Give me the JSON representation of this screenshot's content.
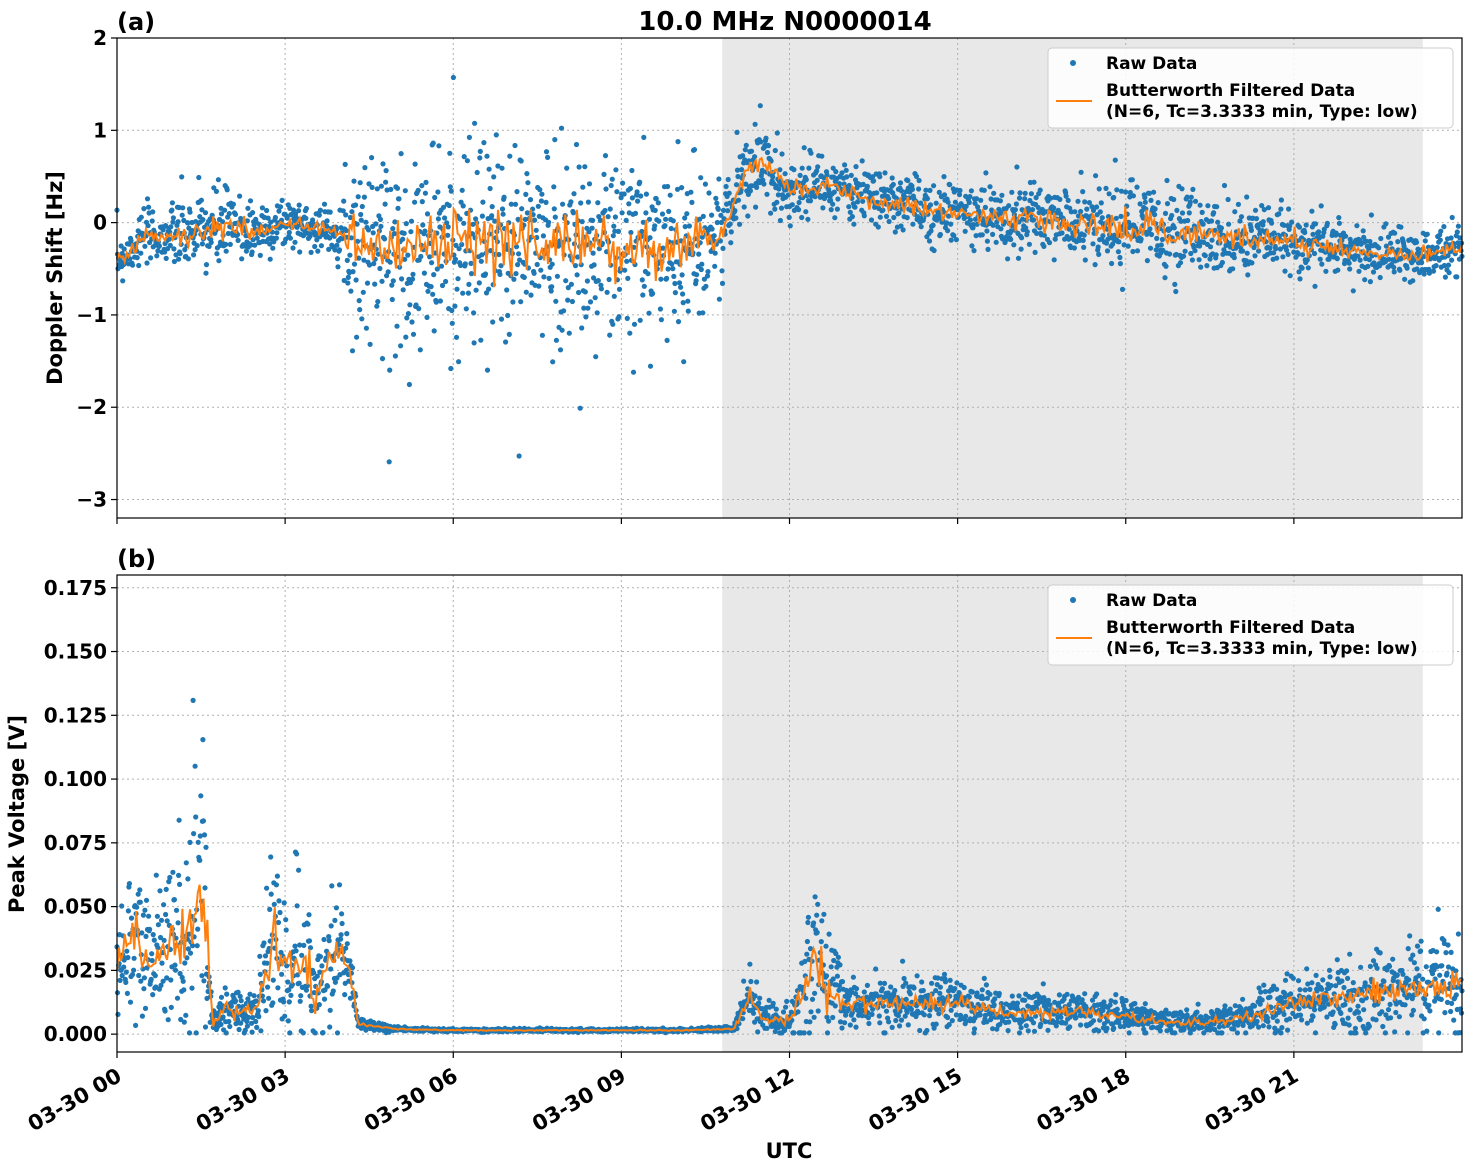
{
  "figure": {
    "title": "10.0 MHz N0000014",
    "xlabel": "UTC",
    "x_tick_labels": [
      "03-30 00",
      "03-30 03",
      "03-30 06",
      "03-30 09",
      "03-30 12",
      "03-30 15",
      "03-30 18",
      "03-30 21"
    ],
    "night_shading": {
      "start_hour": 10.8,
      "end_hour": 23.3,
      "color": "#e8e8e8"
    },
    "raw_color": "#1f77b4",
    "filtered_color": "#ff7f0e"
  },
  "chart_data": [
    {
      "type": "scatter",
      "panel_label": "(a)",
      "ylabel": "Doppler Shift [Hz]",
      "xlim": [
        0,
        24
      ],
      "ylim": [
        -3.2,
        2.0
      ],
      "y_ticks": [
        2,
        1,
        0,
        -1,
        -2,
        -3
      ],
      "y_tick_labels": [
        "2",
        "1",
        "0",
        "−1",
        "−2",
        "−3"
      ],
      "legend": {
        "position": "top-right",
        "raw": "Raw Data",
        "filtered_line1": "Butterworth Filtered Data",
        "filtered_line2": "(N=6, Tc=3.3333 min, Type: low)"
      },
      "filtered_envelope": {
        "x": [
          0,
          0.5,
          1.0,
          1.5,
          2.0,
          2.5,
          3.0,
          3.5,
          4.0,
          4.2,
          5.0,
          6.0,
          7.0,
          8.0,
          9.0,
          10.0,
          10.8,
          11.2,
          11.5,
          12.0,
          12.5,
          13.0,
          14.0,
          15.0,
          16.0,
          17.0,
          18.0,
          19.0,
          20.0,
          21.0,
          22.0,
          23.0,
          24.0
        ],
        "center": [
          -0.4,
          -0.15,
          -0.15,
          -0.1,
          -0.05,
          -0.1,
          0.0,
          -0.05,
          -0.1,
          -0.2,
          -0.3,
          -0.25,
          -0.2,
          -0.25,
          -0.3,
          -0.25,
          -0.1,
          0.55,
          0.65,
          0.35,
          0.4,
          0.35,
          0.2,
          0.1,
          0.05,
          0.0,
          -0.05,
          -0.1,
          -0.15,
          -0.2,
          -0.3,
          -0.35,
          -0.3
        ],
        "spread": [
          0.25,
          0.25,
          0.3,
          0.45,
          0.4,
          0.3,
          0.25,
          0.2,
          0.2,
          0.9,
          1.0,
          1.05,
          1.05,
          1.0,
          1.0,
          0.95,
          0.5,
          0.4,
          0.4,
          0.3,
          0.3,
          0.25,
          0.3,
          0.3,
          0.35,
          0.35,
          0.45,
          0.4,
          0.35,
          0.3,
          0.25,
          0.25,
          0.25
        ]
      }
    },
    {
      "type": "scatter",
      "panel_label": "(b)",
      "ylabel": "Peak Voltage [V]",
      "xlim": [
        0,
        24
      ],
      "ylim": [
        -0.007,
        0.18
      ],
      "y_ticks": [
        0.175,
        0.15,
        0.125,
        0.1,
        0.075,
        0.05,
        0.025,
        0.0
      ],
      "y_tick_labels": [
        "0.175",
        "0.150",
        "0.125",
        "0.100",
        "0.075",
        "0.050",
        "0.025",
        "0.000"
      ],
      "legend": {
        "position": "top-right",
        "raw": "Raw Data",
        "filtered_line1": "Butterworth Filtered Data",
        "filtered_line2": "(N=6, Tc=3.3333 min, Type: low)"
      },
      "filtered_envelope": {
        "x": [
          0,
          0.3,
          0.5,
          1.0,
          1.3,
          1.5,
          1.6,
          1.7,
          2.0,
          2.5,
          2.8,
          3.0,
          3.3,
          3.5,
          4.0,
          4.2,
          4.3,
          5.0,
          6.0,
          7.0,
          8.0,
          9.0,
          10.0,
          11.0,
          11.3,
          11.5,
          12.0,
          12.5,
          12.7,
          13.0,
          14.0,
          15.0,
          16.0,
          17.0,
          18.0,
          19.0,
          20.0,
          21.0,
          22.0,
          23.0,
          24.0
        ],
        "center": [
          0.025,
          0.04,
          0.03,
          0.035,
          0.04,
          0.065,
          0.04,
          0.005,
          0.01,
          0.01,
          0.04,
          0.025,
          0.03,
          0.015,
          0.035,
          0.02,
          0.004,
          0.002,
          0.0015,
          0.0015,
          0.0015,
          0.0015,
          0.0015,
          0.002,
          0.015,
          0.006,
          0.005,
          0.03,
          0.02,
          0.012,
          0.012,
          0.012,
          0.008,
          0.009,
          0.007,
          0.004,
          0.006,
          0.012,
          0.015,
          0.018,
          0.02
        ],
        "spread": [
          0.018,
          0.025,
          0.02,
          0.03,
          0.04,
          0.06,
          0.04,
          0.006,
          0.008,
          0.008,
          0.035,
          0.02,
          0.035,
          0.015,
          0.025,
          0.01,
          0.002,
          0.0008,
          0.0006,
          0.0006,
          0.0006,
          0.0006,
          0.0006,
          0.001,
          0.012,
          0.006,
          0.006,
          0.035,
          0.02,
          0.01,
          0.01,
          0.009,
          0.007,
          0.008,
          0.006,
          0.004,
          0.006,
          0.01,
          0.012,
          0.016,
          0.02
        ]
      }
    }
  ]
}
